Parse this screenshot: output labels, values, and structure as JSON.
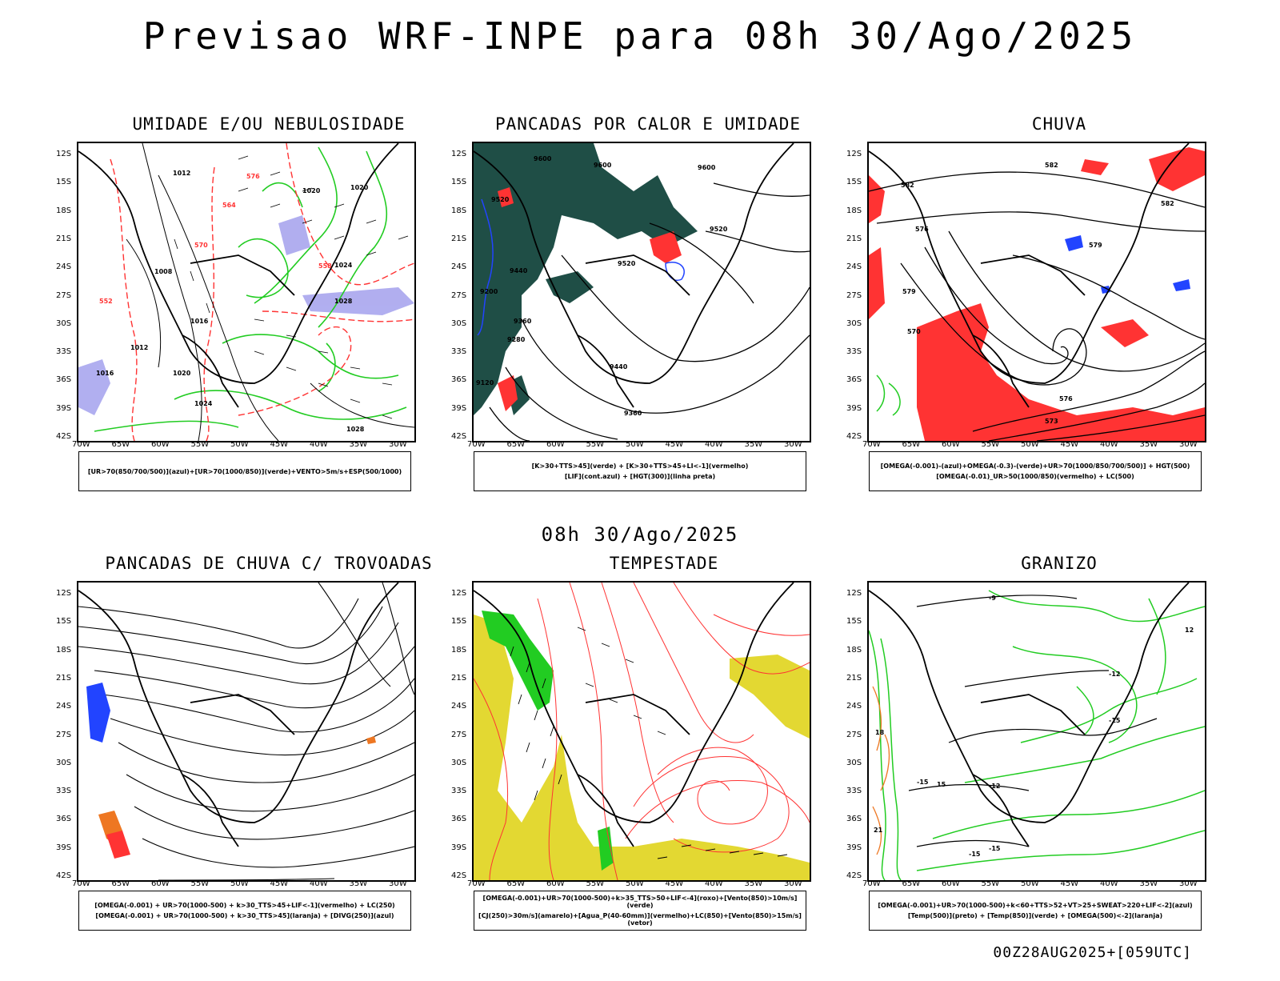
{
  "header": {
    "title": "Previsao WRF-INPE  para 08h 30/Ago/2025"
  },
  "mid_title": "08h 30/Ago/2025",
  "footer": "00Z28AUG2025+[059UTC]",
  "axes": {
    "lat_labels": [
      "12S",
      "15S",
      "18S",
      "21S",
      "24S",
      "27S",
      "30S",
      "33S",
      "36S",
      "39S",
      "42S"
    ],
    "lon_labels": [
      "70W",
      "65W",
      "60W",
      "55W",
      "50W",
      "45W",
      "40W",
      "35W",
      "30W"
    ]
  },
  "panels": [
    {
      "id": "umidade",
      "title": "UMIDADE E/OU NEBULOSIDADE",
      "caption": [
        "[UR>70(850/700/500)](azul)+[UR>70(1000/850)](verde)+VENTO>5m/s+ESP(500/1000)"
      ],
      "contour_labels": [
        "1012",
        "1020",
        "1020",
        "1024",
        "1028",
        "1008",
        "1016",
        "1012",
        "1016",
        "1020",
        "1024",
        "1028",
        "570",
        "564",
        "558",
        "552",
        "576"
      ]
    },
    {
      "id": "pancadas-calor",
      "title": "PANCADAS POR CALOR E UMIDADE",
      "caption": [
        "[K>30+TTS>45](verde) + [K>30+TTS>45+LI<-1](vermelho)",
        "[LIF](cont.azul) + [HGT(300)](linha preta)"
      ],
      "contour_labels": [
        "9600",
        "9600",
        "9600",
        "9520",
        "9520",
        "9520",
        "9440",
        "9440",
        "9360",
        "9360",
        "9280",
        "9200",
        "9120"
      ]
    },
    {
      "id": "chuva",
      "title": "CHUVA",
      "caption": [
        "[OMEGA(-0.001)-(azul)+OMEGA(-0.3)-(verde)+UR>70(1000/850/700/500)] + HGT(500)",
        "[OMEGA(-0.01)_UR>50(1000/850)(vermelho) + LC(500)"
      ],
      "contour_labels": [
        "582",
        "582",
        "582",
        "576",
        "579",
        "570",
        "573",
        "576",
        "579"
      ]
    },
    {
      "id": "pancadas-trovoadas",
      "title": "PANCADAS DE CHUVA C/ TROVOADAS",
      "caption": [
        "[OMEGA(-0.001) + UR>70(1000-500) + k>30_TTS>45+LIF<-1](vermelho) + LC(250)",
        "[OMEGA(-0.001) + UR>70(1000-500) + k>30_TTS>45](laranja) + [DIVG(250)](azul)"
      ],
      "contour_labels": []
    },
    {
      "id": "tempestade",
      "title": "TEMPESTADE",
      "caption": [
        "[OMEGA(-0.001)+UR>70(1000-500)+k>35_TTS>50+LIF<-4](roxo)+[Vento(850)>10m/s](verde)",
        "[CJ(250)>30m/s](amarelo)+[Agua_P(40-60mm)](vermelho)+LC(850)+[Vento(850)>15m/s](vetor)"
      ],
      "contour_labels": []
    },
    {
      "id": "granizo",
      "title": "GRANIZO",
      "caption": [
        "[OMEGA(-0.001)+UR>70(1000-500)+k<60+TTS>52+VT>25+SWEAT>220+LIF<-2](azul)",
        "[Temp(500)](preto) + [Temp(850)](verde) + [OMEGA(500)<-2](laranja)"
      ],
      "contour_labels": [
        "-9",
        "-12",
        "-12",
        "-15",
        "-15",
        "12",
        "15",
        "18",
        "21",
        "-15",
        "-15"
      ]
    }
  ],
  "colors": {
    "black": "#000000",
    "green": "#22cc22",
    "red": "#ff3333",
    "blue": "#2244ff",
    "dark_teal": "#1f4e46",
    "lavender": "#a9a6ee",
    "yellow": "#e3d832",
    "orange": "#ee7722"
  }
}
